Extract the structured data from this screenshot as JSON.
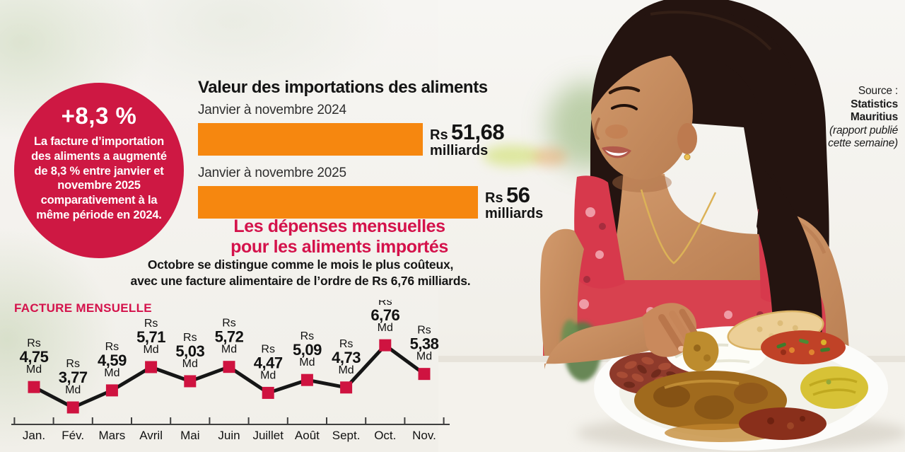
{
  "badge": {
    "headline": "+8,3 %",
    "body": "La facture d’importation des aliments a augmenté de 8,3 % entre janvier et novembre 2025 comparativement à la même période en 2024.",
    "color": "#CE1843"
  },
  "monthly_section": {
    "title_line1": "Les dépenses mensuelles",
    "title_line2": "pour les aliments importés",
    "subtitle_line1": "Octobre se distingue comme le mois le plus coûteux,",
    "subtitle_line2": "avec une facture alimentaire de l’ordre de Rs 6,76 milliards.",
    "title_color": "#D4124B"
  },
  "source": {
    "label": "Source :",
    "org_line1": "Statistics",
    "org_line2": "Mauritius",
    "note_line1": "(rapport publié",
    "note_line2": "cette semaine)"
  },
  "colors": {
    "orange": "#F6870F",
    "red_badge": "#CE1843",
    "red_text": "#D4124B",
    "marker_red": "#CF1340",
    "line_black": "#161616"
  },
  "chart_data": [
    {
      "type": "bar",
      "orientation": "horizontal",
      "title": "Valeur des importations des aliments",
      "categories": [
        "Janvier à novembre 2024",
        "Janvier à novembre 2025"
      ],
      "values": [
        51.68,
        56
      ],
      "value_labels": [
        "51,68",
        "56"
      ],
      "currency": "Rs",
      "unit": "milliards",
      "bar_color": "#F6870F"
    },
    {
      "type": "line",
      "title": "FACTURE MENSUELLE",
      "categories": [
        "Jan.",
        "Fév.",
        "Mars",
        "Avril",
        "Mai",
        "Juin",
        "Juillet",
        "Août",
        "Sept.",
        "Oct.",
        "Nov."
      ],
      "values": [
        4.75,
        3.77,
        4.59,
        5.71,
        5.03,
        5.72,
        4.47,
        5.09,
        4.73,
        6.76,
        5.38
      ],
      "value_labels": [
        "4,75",
        "3,77",
        "4,59",
        "5,71",
        "5,03",
        "5,72",
        "4,47",
        "5,09",
        "4,73",
        "6,76",
        "5,38"
      ],
      "prefix": "Rs",
      "suffix": "Md",
      "ylim": [
        3.5,
        7
      ],
      "grid": false,
      "legend": "none",
      "marker": "square",
      "marker_color": "#CF1340",
      "line_color": "#161616"
    }
  ]
}
